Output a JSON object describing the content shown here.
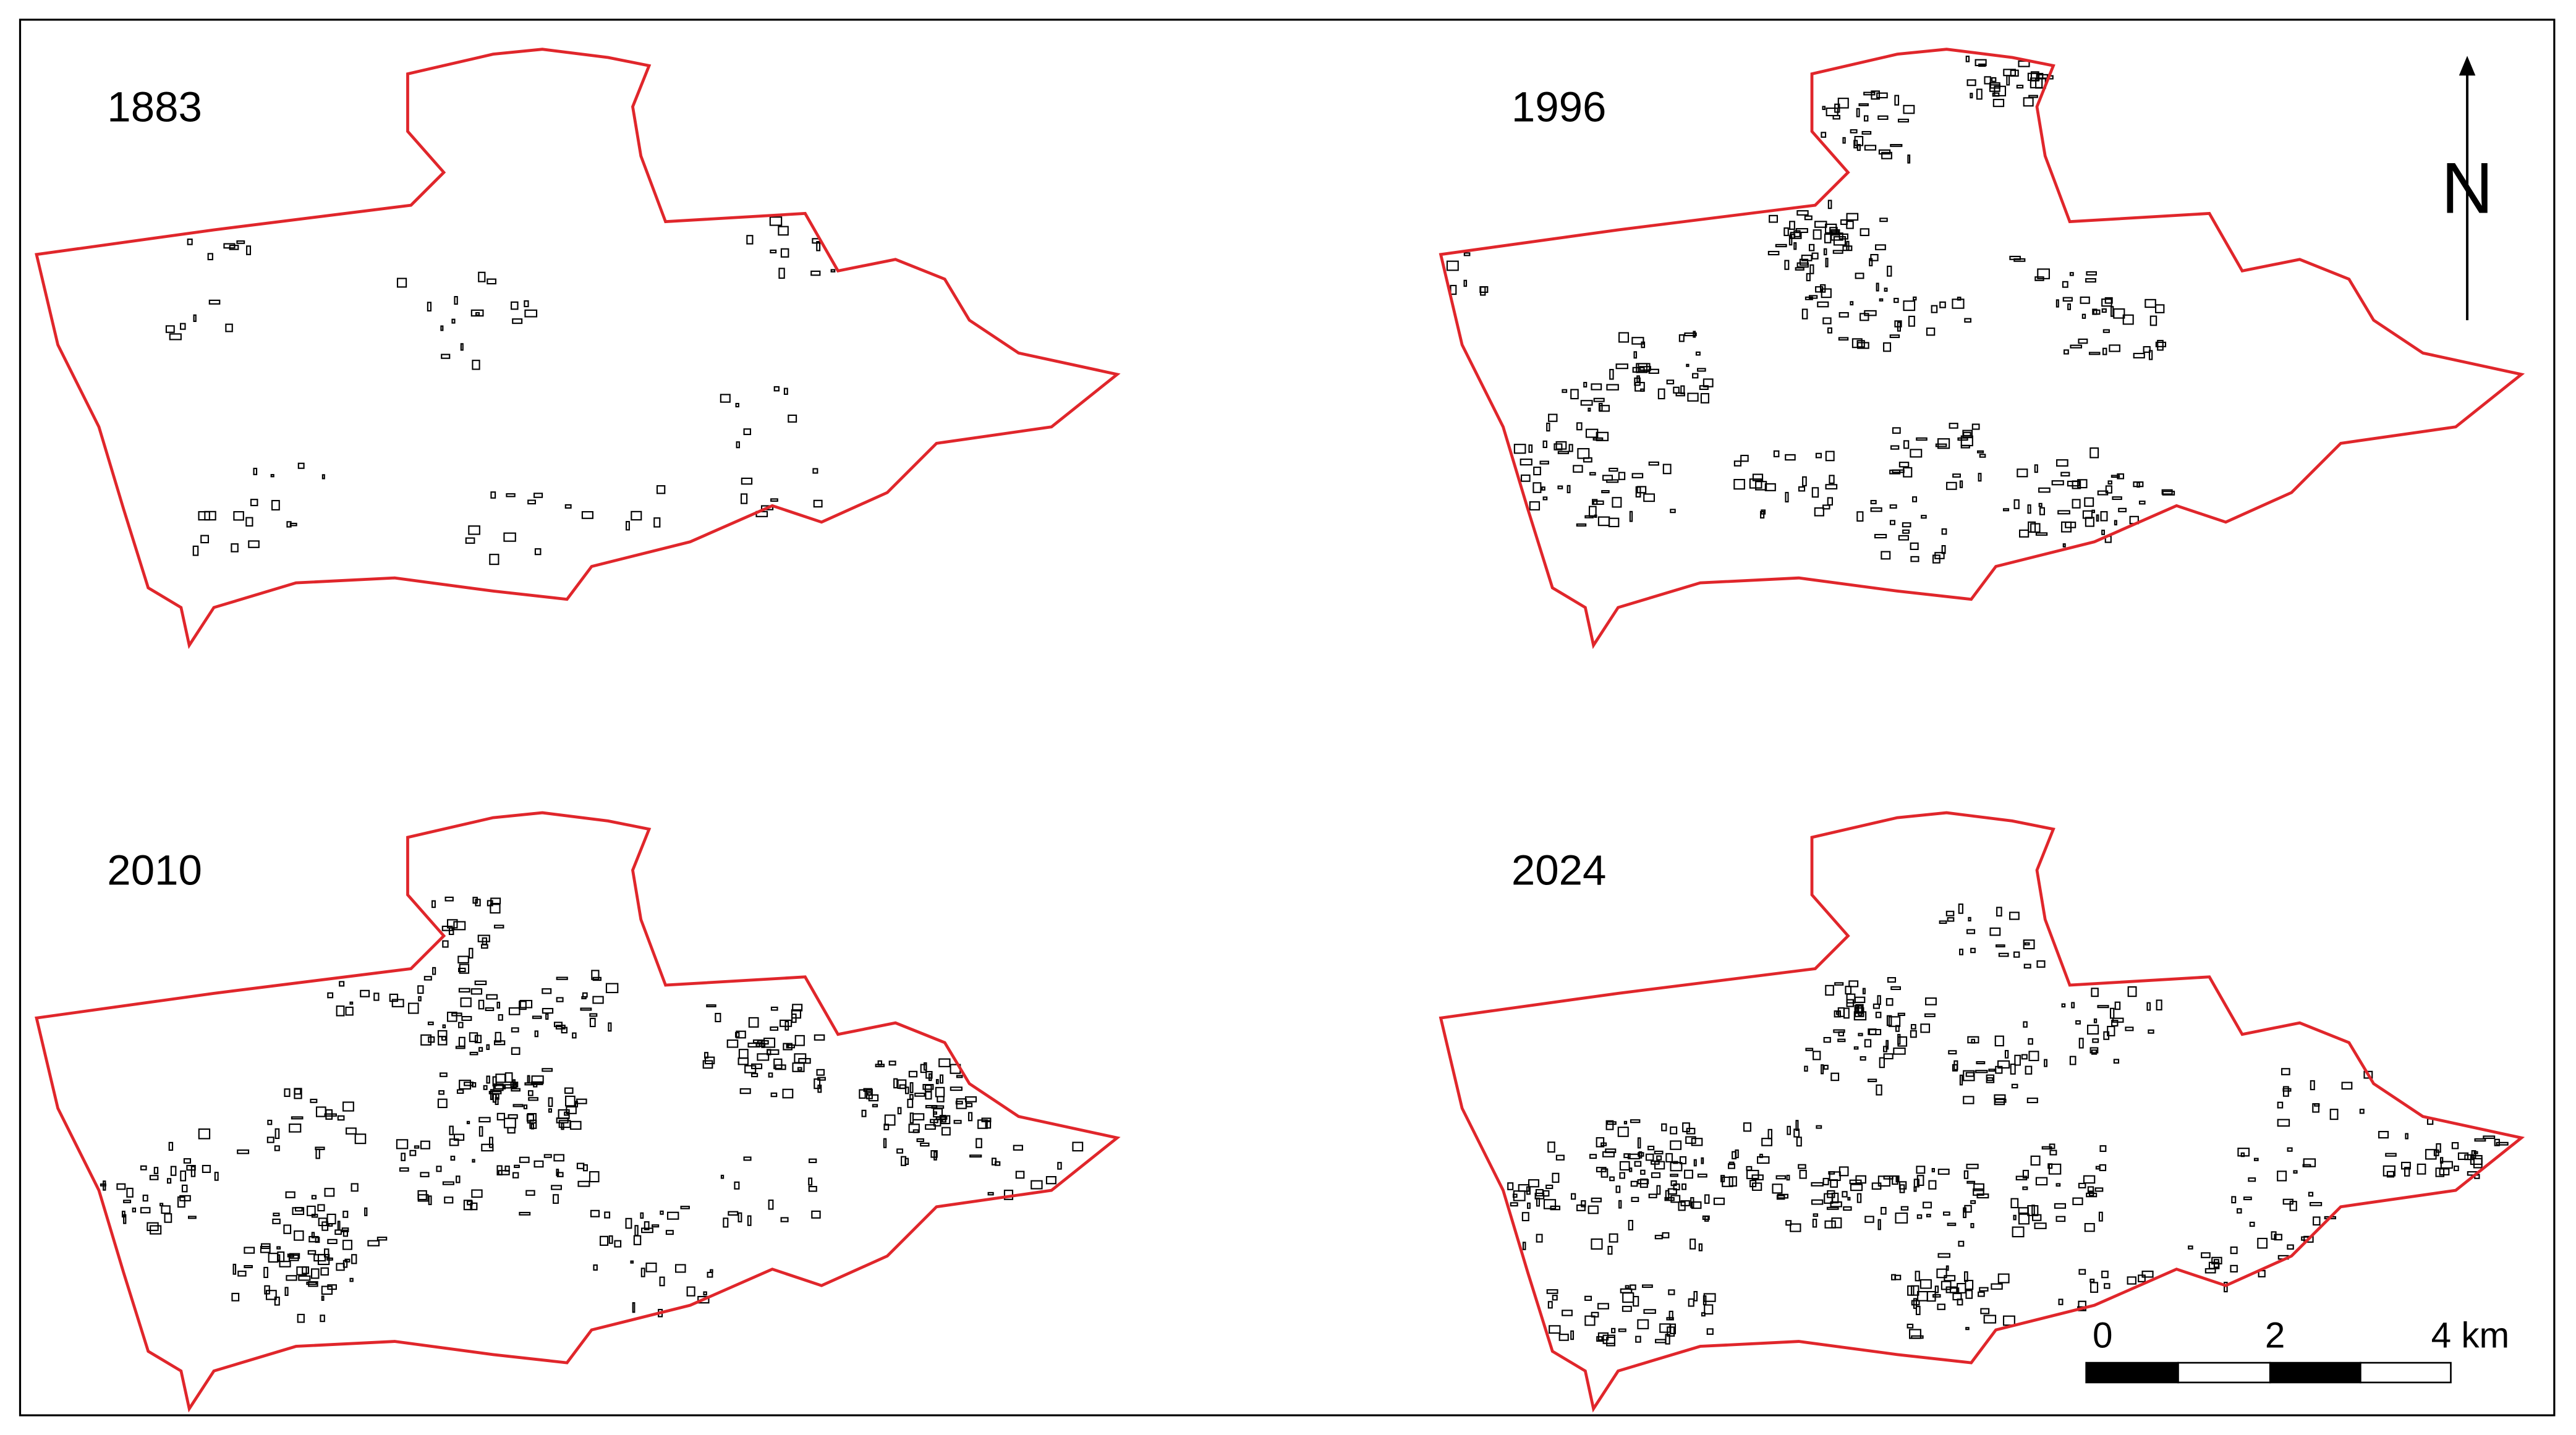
{
  "panels": [
    {
      "label": "1883"
    },
    {
      "label": "1996"
    },
    {
      "label": "2010"
    },
    {
      "label": "2024"
    }
  ],
  "north_arrow": {
    "label": "N"
  },
  "scale_bar": {
    "labels": [
      "0",
      "2",
      "4 km"
    ]
  }
}
